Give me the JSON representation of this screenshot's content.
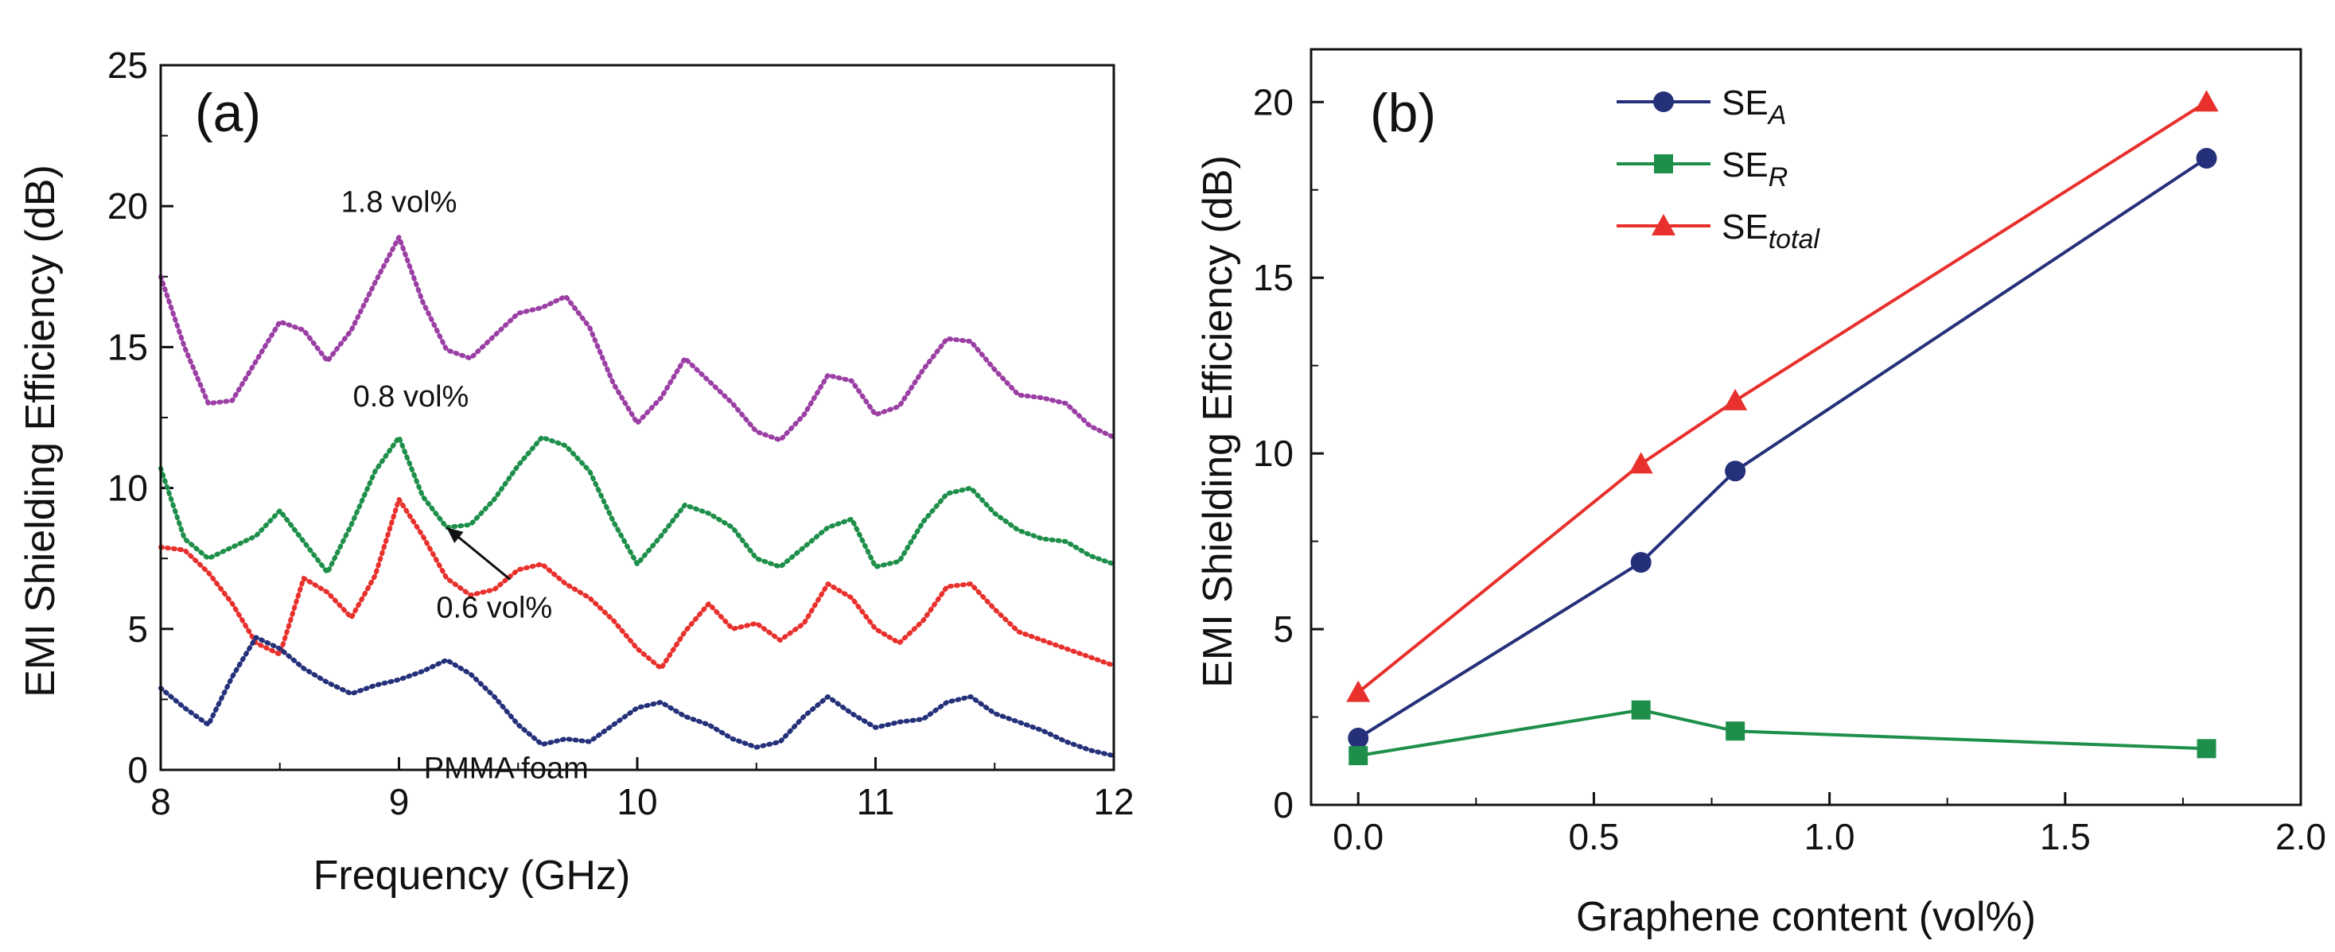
{
  "chart_data": [
    {
      "panel": "(a)",
      "type": "line",
      "xlabel": "Frequency (GHz)",
      "ylabel": "EMI Shielding Efficiency (dB)",
      "xlim": [
        8,
        12
      ],
      "ylim": [
        0,
        25
      ],
      "xticks": [
        8,
        9,
        10,
        11,
        12
      ],
      "yticks": [
        0,
        5,
        10,
        15,
        20,
        25
      ],
      "series": [
        {
          "name": "1.8 vol%",
          "color": "#9b3fa5",
          "points": [
            [
              8.0,
              17.5
            ],
            [
              8.1,
              15.0
            ],
            [
              8.2,
              13.0
            ],
            [
              8.3,
              13.1
            ],
            [
              8.4,
              14.5
            ],
            [
              8.5,
              15.9
            ],
            [
              8.6,
              15.6
            ],
            [
              8.7,
              14.5
            ],
            [
              8.8,
              15.6
            ],
            [
              8.9,
              17.3
            ],
            [
              9.0,
              18.9
            ],
            [
              9.1,
              16.6
            ],
            [
              9.2,
              14.9
            ],
            [
              9.3,
              14.6
            ],
            [
              9.4,
              15.4
            ],
            [
              9.5,
              16.2
            ],
            [
              9.6,
              16.4
            ],
            [
              9.7,
              16.8
            ],
            [
              9.8,
              15.7
            ],
            [
              9.9,
              13.7
            ],
            [
              10.0,
              12.3
            ],
            [
              10.1,
              13.2
            ],
            [
              10.2,
              14.6
            ],
            [
              10.3,
              13.8
            ],
            [
              10.4,
              13.0
            ],
            [
              10.5,
              12.0
            ],
            [
              10.6,
              11.7
            ],
            [
              10.7,
              12.6
            ],
            [
              10.8,
              14.0
            ],
            [
              10.9,
              13.8
            ],
            [
              11.0,
              12.6
            ],
            [
              11.1,
              12.9
            ],
            [
              11.2,
              14.2
            ],
            [
              11.3,
              15.3
            ],
            [
              11.4,
              15.2
            ],
            [
              11.5,
              14.2
            ],
            [
              11.6,
              13.3
            ],
            [
              11.7,
              13.2
            ],
            [
              11.8,
              13.0
            ],
            [
              11.9,
              12.2
            ],
            [
              12.0,
              11.8
            ]
          ]
        },
        {
          "name": "0.8 vol%",
          "color": "#1e8f4a",
          "points": [
            [
              8.0,
              10.7
            ],
            [
              8.1,
              8.2
            ],
            [
              8.2,
              7.5
            ],
            [
              8.3,
              7.9
            ],
            [
              8.4,
              8.3
            ],
            [
              8.5,
              9.2
            ],
            [
              8.6,
              8.1
            ],
            [
              8.7,
              7.0
            ],
            [
              8.8,
              8.7
            ],
            [
              8.9,
              10.6
            ],
            [
              9.0,
              11.8
            ],
            [
              9.1,
              9.7
            ],
            [
              9.2,
              8.6
            ],
            [
              9.3,
              8.7
            ],
            [
              9.4,
              9.6
            ],
            [
              9.5,
              10.8
            ],
            [
              9.6,
              11.8
            ],
            [
              9.7,
              11.5
            ],
            [
              9.8,
              10.6
            ],
            [
              9.9,
              8.8
            ],
            [
              10.0,
              7.3
            ],
            [
              10.1,
              8.3
            ],
            [
              10.2,
              9.4
            ],
            [
              10.3,
              9.1
            ],
            [
              10.4,
              8.6
            ],
            [
              10.5,
              7.5
            ],
            [
              10.6,
              7.2
            ],
            [
              10.7,
              7.9
            ],
            [
              10.8,
              8.6
            ],
            [
              10.9,
              8.9
            ],
            [
              11.0,
              7.2
            ],
            [
              11.1,
              7.4
            ],
            [
              11.2,
              8.8
            ],
            [
              11.3,
              9.8
            ],
            [
              11.4,
              10.0
            ],
            [
              11.5,
              9.1
            ],
            [
              11.6,
              8.5
            ],
            [
              11.7,
              8.2
            ],
            [
              11.8,
              8.1
            ],
            [
              11.9,
              7.6
            ],
            [
              12.0,
              7.3
            ]
          ]
        },
        {
          "name": "0.6 vol%",
          "color": "#e8302c",
          "points": [
            [
              8.0,
              7.9
            ],
            [
              8.1,
              7.8
            ],
            [
              8.2,
              7.0
            ],
            [
              8.3,
              5.9
            ],
            [
              8.4,
              4.5
            ],
            [
              8.5,
              4.1
            ],
            [
              8.6,
              6.8
            ],
            [
              8.7,
              6.3
            ],
            [
              8.8,
              5.4
            ],
            [
              8.9,
              6.9
            ],
            [
              9.0,
              9.6
            ],
            [
              9.1,
              8.3
            ],
            [
              9.2,
              6.8
            ],
            [
              9.3,
              6.2
            ],
            [
              9.4,
              6.4
            ],
            [
              9.5,
              7.1
            ],
            [
              9.6,
              7.3
            ],
            [
              9.7,
              6.6
            ],
            [
              9.8,
              6.1
            ],
            [
              9.9,
              5.3
            ],
            [
              10.0,
              4.3
            ],
            [
              10.1,
              3.6
            ],
            [
              10.2,
              4.9
            ],
            [
              10.3,
              5.9
            ],
            [
              10.4,
              5.0
            ],
            [
              10.5,
              5.2
            ],
            [
              10.6,
              4.6
            ],
            [
              10.7,
              5.2
            ],
            [
              10.8,
              6.6
            ],
            [
              10.9,
              6.1
            ],
            [
              11.0,
              5.0
            ],
            [
              11.1,
              4.5
            ],
            [
              11.2,
              5.3
            ],
            [
              11.3,
              6.5
            ],
            [
              11.4,
              6.6
            ],
            [
              11.5,
              5.7
            ],
            [
              11.6,
              4.9
            ],
            [
              11.7,
              4.6
            ],
            [
              11.8,
              4.3
            ],
            [
              11.9,
              4.0
            ],
            [
              12.0,
              3.7
            ]
          ]
        },
        {
          "name": "PMMA foam",
          "color": "#25307a",
          "points": [
            [
              8.0,
              2.9
            ],
            [
              8.1,
              2.2
            ],
            [
              8.2,
              1.6
            ],
            [
              8.3,
              3.3
            ],
            [
              8.4,
              4.7
            ],
            [
              8.5,
              4.3
            ],
            [
              8.6,
              3.6
            ],
            [
              8.7,
              3.1
            ],
            [
              8.8,
              2.7
            ],
            [
              8.9,
              3.0
            ],
            [
              9.0,
              3.2
            ],
            [
              9.1,
              3.5
            ],
            [
              9.2,
              3.9
            ],
            [
              9.3,
              3.4
            ],
            [
              9.4,
              2.6
            ],
            [
              9.5,
              1.6
            ],
            [
              9.6,
              0.9
            ],
            [
              9.7,
              1.1
            ],
            [
              9.8,
              1.0
            ],
            [
              9.9,
              1.6
            ],
            [
              10.0,
              2.2
            ],
            [
              10.1,
              2.4
            ],
            [
              10.2,
              1.9
            ],
            [
              10.3,
              1.6
            ],
            [
              10.4,
              1.1
            ],
            [
              10.5,
              0.8
            ],
            [
              10.6,
              1.0
            ],
            [
              10.7,
              1.9
            ],
            [
              10.8,
              2.6
            ],
            [
              10.9,
              2.0
            ],
            [
              11.0,
              1.5
            ],
            [
              11.1,
              1.7
            ],
            [
              11.2,
              1.8
            ],
            [
              11.3,
              2.4
            ],
            [
              11.4,
              2.6
            ],
            [
              11.5,
              2.0
            ],
            [
              11.6,
              1.7
            ],
            [
              11.7,
              1.4
            ],
            [
              11.8,
              1.0
            ],
            [
              11.9,
              0.7
            ],
            [
              12.0,
              0.5
            ]
          ]
        }
      ],
      "annotations": [
        {
          "text": "1.8 vol%",
          "x": 9.0,
          "y": 19.8
        },
        {
          "text": "0.8 vol%",
          "x": 9.05,
          "y": 12.9
        },
        {
          "text": "0.6 vol%",
          "x": 9.4,
          "y": 5.4,
          "arrow_to": [
            9.2,
            8.6
          ]
        },
        {
          "text": "PMMA foam",
          "x": 9.45,
          "y": -0.3
        }
      ]
    },
    {
      "panel": "(b)",
      "type": "line",
      "xlabel": "Graphene content (vol%)",
      "ylabel": "EMI Shielding Efficiency (dB)",
      "xlim": [
        -0.1,
        2.0
      ],
      "ylim": [
        0,
        21.5
      ],
      "xticks": [
        0.0,
        0.5,
        1.0,
        1.5,
        2.0
      ],
      "xtick_labels": [
        "0.0",
        "0.5",
        "1.0",
        "1.5",
        "2.0"
      ],
      "yticks": [
        0,
        5,
        10,
        15,
        20
      ],
      "x": [
        0.0,
        0.6,
        0.8,
        1.8
      ],
      "series": [
        {
          "name": "SE",
          "sub": "A",
          "marker": "circle",
          "color": "#25307a",
          "values": [
            1.9,
            6.9,
            9.5,
            18.4
          ]
        },
        {
          "name": "SE",
          "sub": "R",
          "marker": "square",
          "color": "#1e8f4a",
          "values": [
            1.4,
            2.7,
            2.1,
            1.6
          ]
        },
        {
          "name": "SE",
          "sub": "total",
          "marker": "triangle",
          "color": "#e8302c",
          "values": [
            3.2,
            9.7,
            11.5,
            20.0
          ]
        }
      ],
      "legend": "top-left"
    }
  ]
}
